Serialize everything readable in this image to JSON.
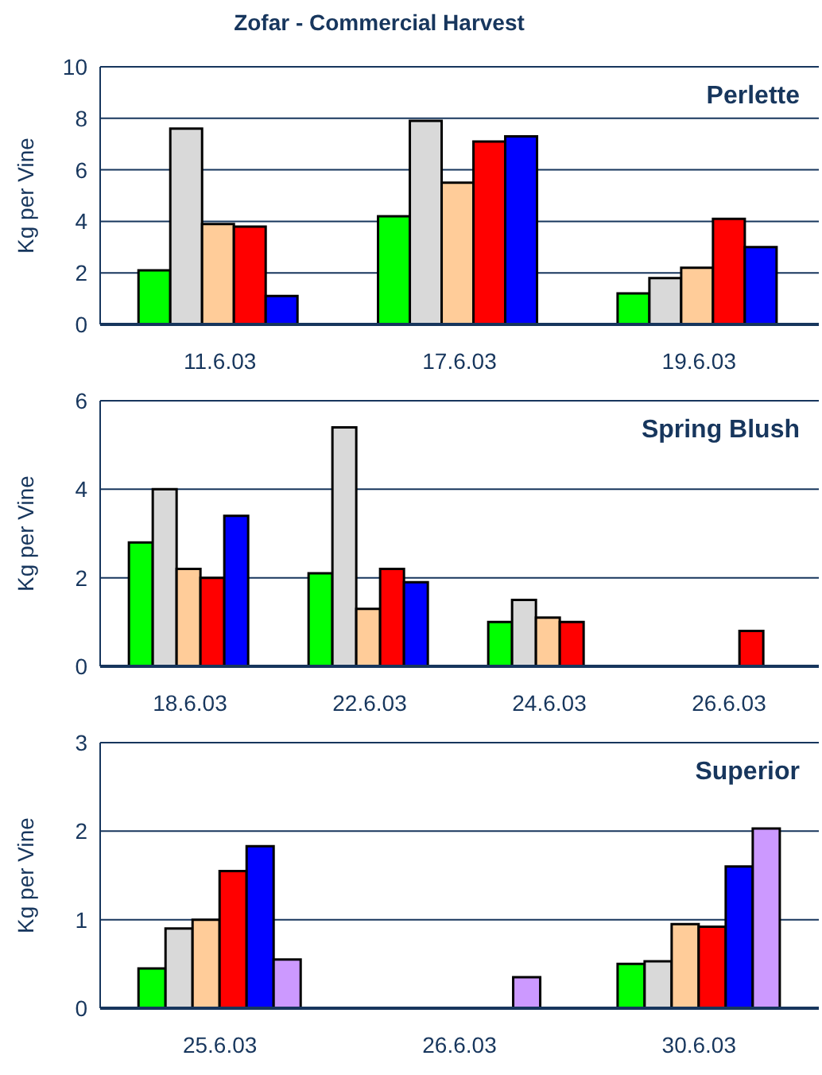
{
  "chart_data": [
    {
      "type": "bar",
      "title": "Zofar - Commercial Harvest",
      "subtitle": "Perlette",
      "ylabel": "Kg per Vine",
      "categories": [
        "11.6.03",
        "17.6.03",
        "19.6.03"
      ],
      "ylim": [
        0,
        10
      ],
      "yticks": [
        0,
        2,
        4,
        6,
        8,
        10
      ],
      "grid": "y",
      "series": [
        {
          "color": "#00ff00",
          "values": [
            2.1,
            4.2,
            1.2
          ]
        },
        {
          "color": "#d9d9d9",
          "values": [
            7.6,
            7.9,
            1.8
          ]
        },
        {
          "color": "#ffcc99",
          "values": [
            3.9,
            5.5,
            2.2
          ]
        },
        {
          "color": "#ff0000",
          "values": [
            3.8,
            7.1,
            4.1
          ]
        },
        {
          "color": "#0000ff",
          "values": [
            1.1,
            7.3,
            3.0
          ]
        }
      ]
    },
    {
      "type": "bar",
      "subtitle": "Spring Blush",
      "ylabel": "Kg per Vine",
      "categories": [
        "18.6.03",
        "22.6.03",
        "24.6.03",
        "26.6.03"
      ],
      "ylim": [
        0,
        6
      ],
      "yticks": [
        0,
        2,
        4,
        6
      ],
      "grid": "y",
      "series": [
        {
          "color": "#00ff00",
          "values": [
            2.8,
            2.1,
            1.0,
            null
          ]
        },
        {
          "color": "#d9d9d9",
          "values": [
            4.0,
            5.4,
            1.5,
            null
          ]
        },
        {
          "color": "#ffcc99",
          "values": [
            2.2,
            1.3,
            1.1,
            null
          ]
        },
        {
          "color": "#ff0000",
          "values": [
            2.0,
            2.2,
            1.0,
            0.8
          ]
        },
        {
          "color": "#0000ff",
          "values": [
            3.4,
            1.9,
            null,
            null
          ]
        }
      ]
    },
    {
      "type": "bar",
      "subtitle": "Superior",
      "ylabel": "Kg per Vine",
      "categories": [
        "25.6.03",
        "26.6.03",
        "30.6.03"
      ],
      "ylim": [
        0,
        3
      ],
      "yticks": [
        0,
        1,
        2,
        3
      ],
      "grid": "y",
      "series": [
        {
          "color": "#00ff00",
          "values": [
            0.45,
            null,
            0.5
          ]
        },
        {
          "color": "#d9d9d9",
          "values": [
            0.9,
            null,
            0.53
          ]
        },
        {
          "color": "#ffcc99",
          "values": [
            1.0,
            null,
            0.95
          ]
        },
        {
          "color": "#ff0000",
          "values": [
            1.55,
            null,
            0.92
          ]
        },
        {
          "color": "#0000ff",
          "values": [
            1.83,
            null,
            1.6
          ]
        },
        {
          "color": "#cc99ff",
          "values": [
            0.55,
            0.35,
            2.03
          ]
        }
      ]
    }
  ]
}
